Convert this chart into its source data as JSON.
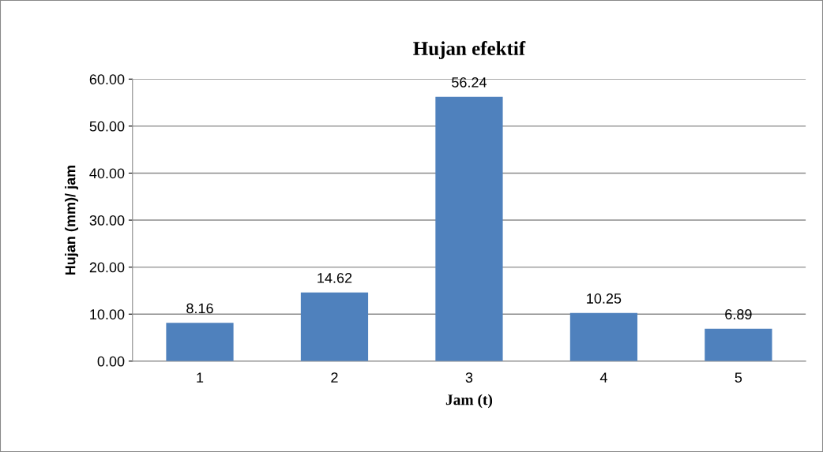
{
  "chart_data": {
    "type": "bar",
    "title": "Hujan efektif",
    "xlabel": "Jam (t)",
    "ylabel": "Hujan (mm)/ jam",
    "categories": [
      "1",
      "2",
      "3",
      "4",
      "5"
    ],
    "values": [
      8.16,
      14.62,
      56.24,
      10.25,
      6.89
    ],
    "color": "#4f81bd",
    "ylim": [
      0,
      60
    ],
    "yticks": [
      {
        "value": 0,
        "label": "0.00"
      },
      {
        "value": 10,
        "label": "10.00"
      },
      {
        "value": 20,
        "label": "20.00"
      },
      {
        "value": 30,
        "label": "30.00"
      },
      {
        "value": 40,
        "label": "40.00"
      },
      {
        "value": 50,
        "label": "50.00"
      },
      {
        "value": 60,
        "label": "60.00"
      }
    ],
    "grid": "y",
    "data_labels": true
  }
}
